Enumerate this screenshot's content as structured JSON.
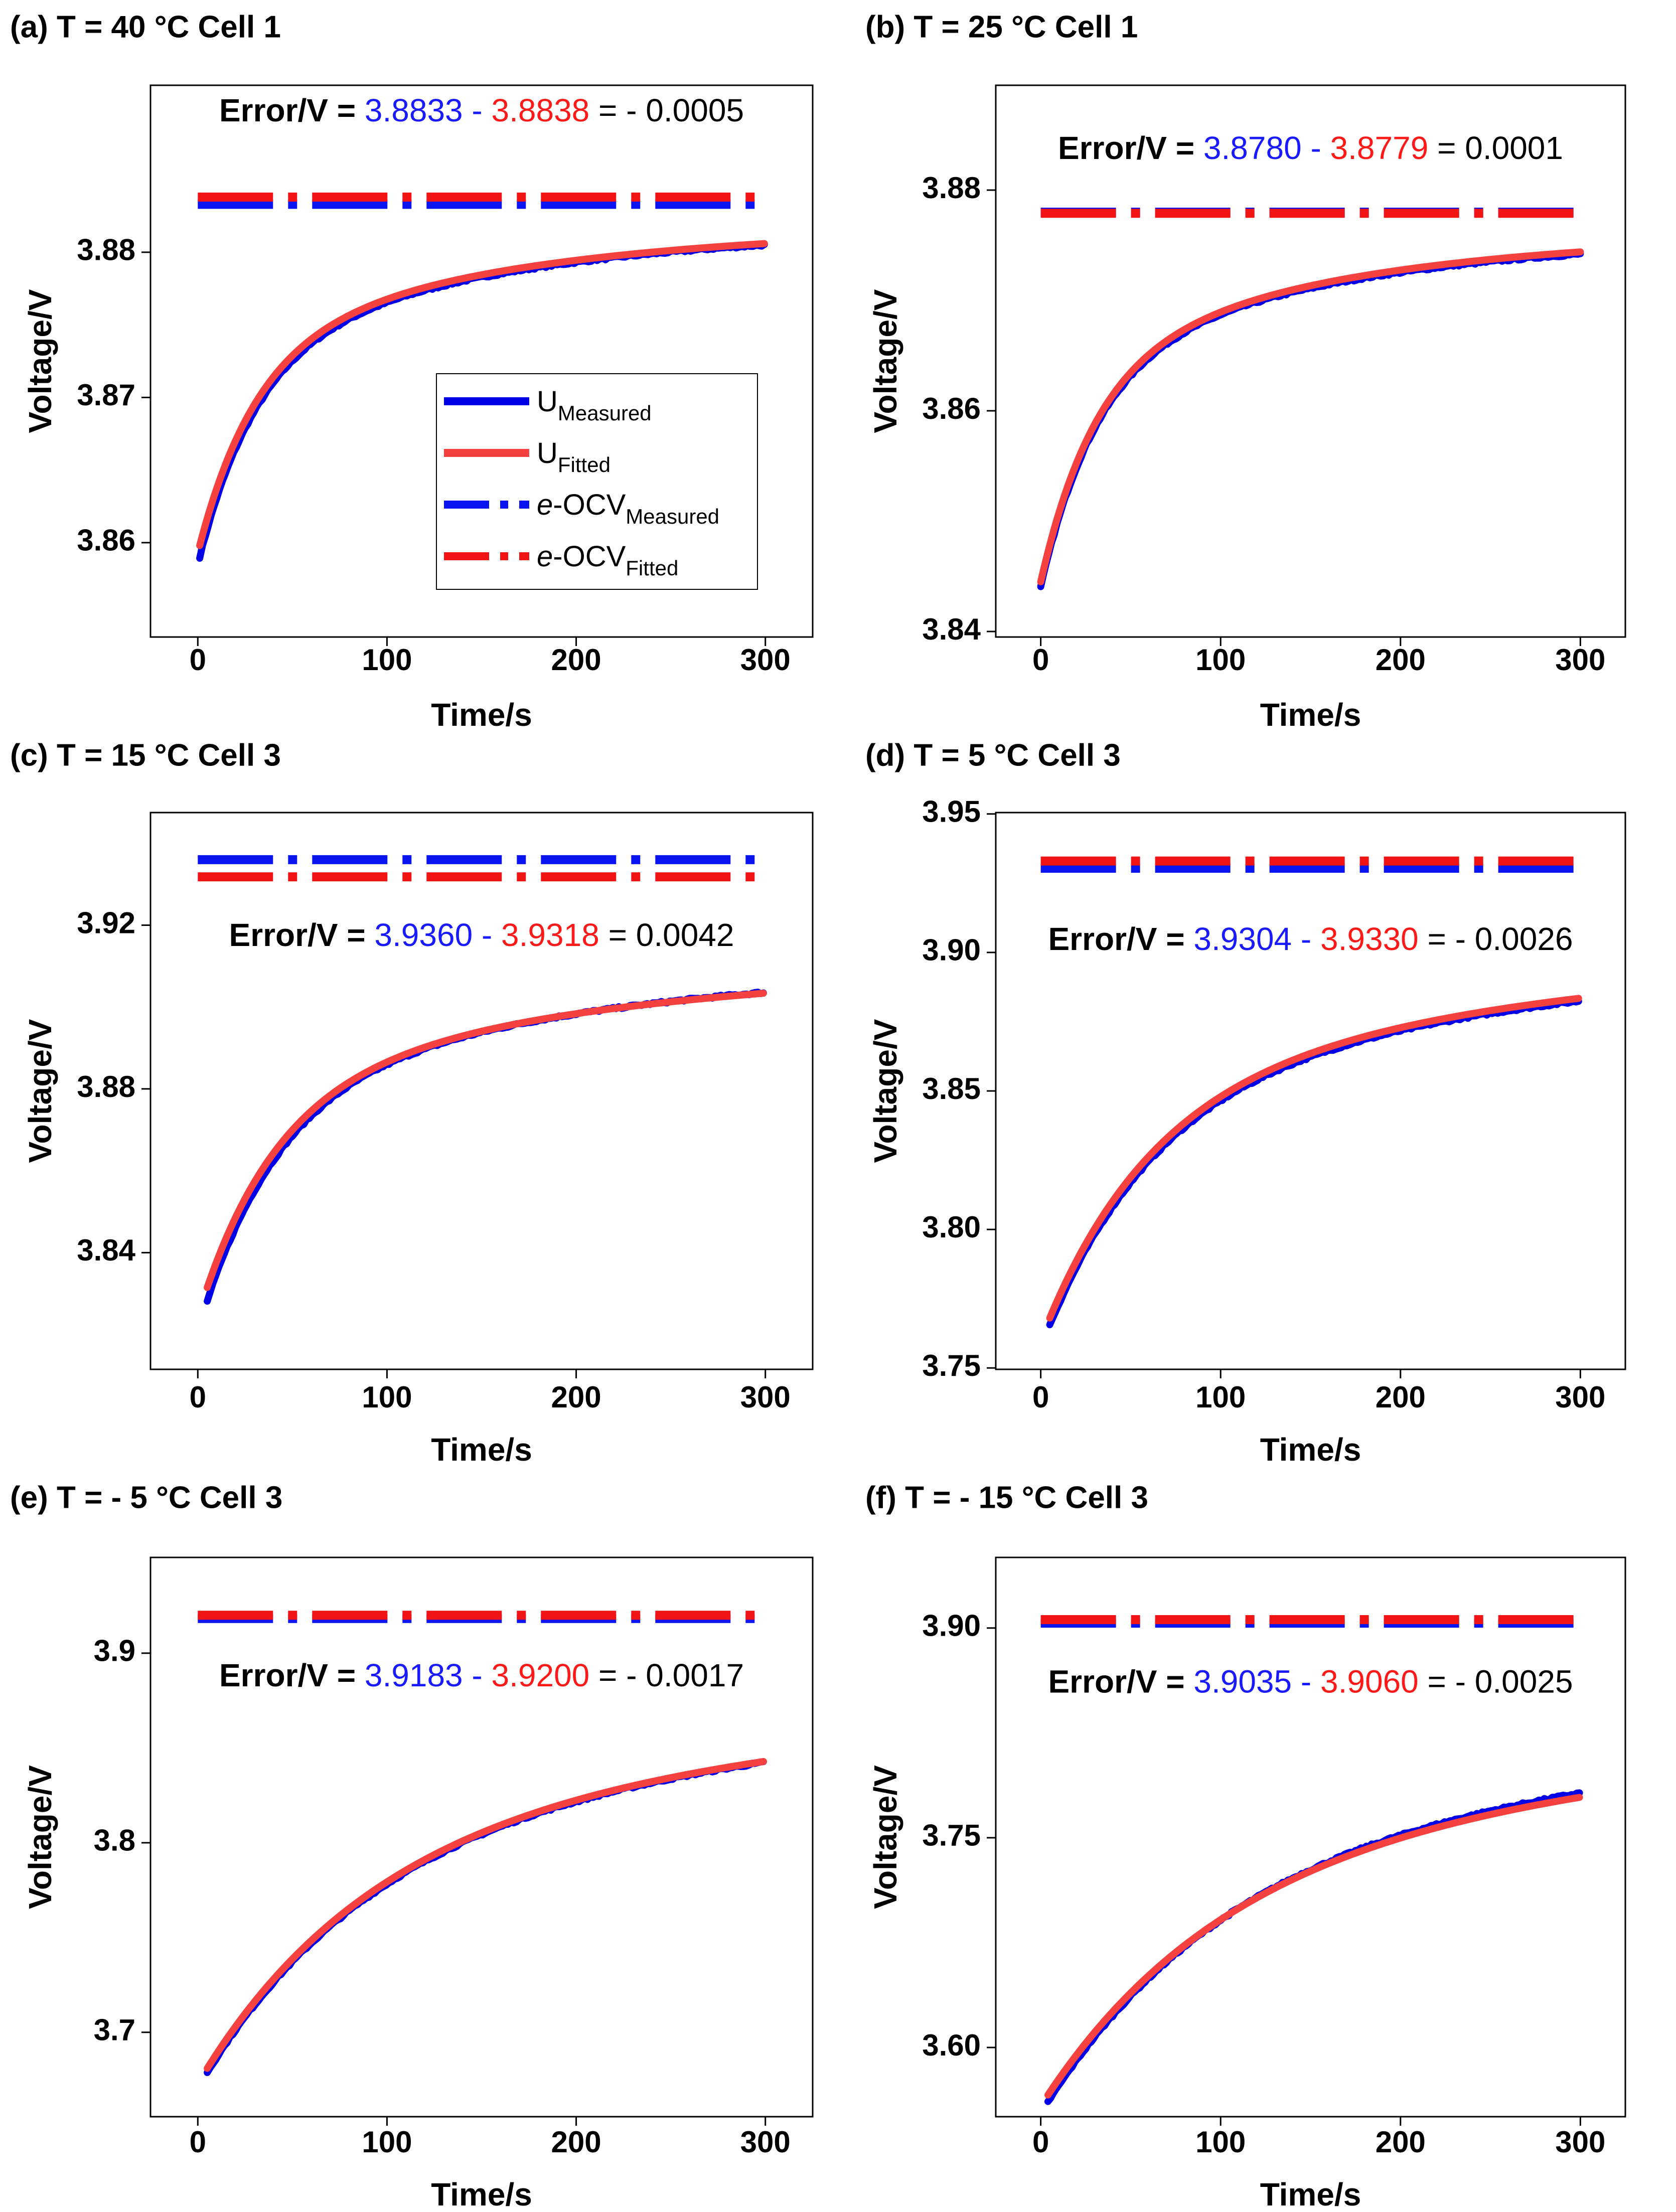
{
  "figure": {
    "colors": {
      "measured": "#0000e6",
      "fitted": "#f5413f",
      "ocv_measured": "#0a14f0",
      "ocv_fitted": "#f01414",
      "error_measured_text": "#1a1aff",
      "error_fitted_text": "#ff1a1a",
      "axis": "#000000"
    },
    "legend": {
      "items": [
        {
          "prefix": "",
          "main": "U",
          "sub": "Measured",
          "style": "solid-measured"
        },
        {
          "prefix": "",
          "main": "U",
          "sub": "Fitted",
          "style": "solid-fitted"
        },
        {
          "prefix": "e",
          "main": "-OCV",
          "sub": "Measured",
          "style": "dashdot-measured"
        },
        {
          "prefix": "e",
          "main": "-OCV",
          "sub": "Fitted",
          "style": "dashdot-fitted"
        }
      ]
    }
  },
  "chart_data": [
    {
      "type": "line",
      "panel": "a",
      "title": "(a) T = 40 °C Cell 1",
      "xlabel": "Time/s",
      "ylabel": "Voltage/V",
      "xlim": [
        -25,
        325
      ],
      "ylim": [
        3.8535,
        3.8915
      ],
      "xticks": [
        0,
        100,
        200,
        300
      ],
      "yticks": [
        3.86,
        3.87,
        3.88
      ],
      "ytick_labels": [
        "3.86",
        "3.87",
        "3.88"
      ],
      "series": [
        {
          "name": "U_Measured",
          "start": 3.859,
          "t_start": 1,
          "end": 3.8805,
          "tau": 30
        },
        {
          "name": "U_Fitted",
          "start": 3.8598,
          "t_start": 1,
          "end": 3.8806,
          "tau": 30
        }
      ],
      "ocv_measured": 3.8833,
      "ocv_fitted": 3.8838,
      "error": {
        "label": "Error/V = ",
        "measured": "3.8833",
        "minus": " - ",
        "fitted": "3.8838",
        "equals": " = - 0.0005"
      },
      "error_y": 3.8896,
      "legend": true
    },
    {
      "type": "line",
      "panel": "b",
      "title": "(b) T = 25 °C Cell 1",
      "xlabel": "Time/s",
      "ylabel": "Voltage/V",
      "xlim": [
        -25,
        325
      ],
      "ylim": [
        3.8395,
        3.8895
      ],
      "xticks": [
        0,
        100,
        200,
        300
      ],
      "yticks": [
        3.84,
        3.86,
        3.88
      ],
      "ytick_labels": [
        "3.84",
        "3.86",
        "3.88"
      ],
      "series": [
        {
          "name": "U_Measured",
          "start": 3.844,
          "t_start": 0,
          "end": 3.8742,
          "tau": 30
        },
        {
          "name": "U_Fitted",
          "start": 3.8445,
          "t_start": 0,
          "end": 3.8744,
          "tau": 30
        }
      ],
      "ocv_measured": 3.878,
      "ocv_fitted": 3.8779,
      "error": {
        "label": "Error/V = ",
        "measured": "3.8780",
        "minus": " - ",
        "fitted": "3.8779",
        "equals": " = 0.0001"
      },
      "error_y": 3.8836,
      "legend": false
    },
    {
      "type": "line",
      "panel": "c",
      "title": "(c) T = 15 °C Cell 3",
      "xlabel": "Time/s",
      "ylabel": "Voltage/V",
      "xlim": [
        -25,
        325
      ],
      "ylim": [
        3.8115,
        3.9475
      ],
      "xticks": [
        0,
        100,
        200,
        300
      ],
      "yticks": [
        3.84,
        3.88,
        3.92
      ],
      "ytick_labels": [
        "3.84",
        "3.88",
        "3.92"
      ],
      "series": [
        {
          "name": "U_Measured",
          "start": 3.8282,
          "t_start": 5,
          "end": 3.9036,
          "tau": 40
        },
        {
          "name": "U_Fitted",
          "start": 3.8315,
          "t_start": 5,
          "end": 3.9034,
          "tau": 40
        }
      ],
      "ocv_measured": 3.936,
      "ocv_fitted": 3.9318,
      "error": {
        "label": "Error/V = ",
        "measured": "3.9360",
        "minus": " - ",
        "fitted": "3.9318",
        "equals": " = 0.0042"
      },
      "error_y": 3.917,
      "legend": false
    },
    {
      "type": "line",
      "panel": "d",
      "title": "(d) T = 5 °C Cell 3",
      "xlabel": "Time/s",
      "ylabel": "Voltage/V",
      "xlim": [
        -25,
        325
      ],
      "ylim": [
        3.7495,
        3.9505
      ],
      "xticks": [
        0,
        100,
        200,
        300
      ],
      "yticks": [
        3.75,
        3.8,
        3.85,
        3.9,
        3.95
      ],
      "ytick_labels": [
        "3.75",
        "3.80",
        "3.85",
        "3.90",
        "3.95"
      ],
      "series": [
        {
          "name": "U_Measured",
          "start": 3.7655,
          "t_start": 5,
          "end": 3.8825,
          "tau": 60
        },
        {
          "name": "U_Fitted",
          "start": 3.768,
          "t_start": 5,
          "end": 3.8835,
          "tau": 60
        }
      ],
      "ocv_measured": 3.9304,
      "ocv_fitted": 3.933,
      "error": {
        "label": "Error/V = ",
        "measured": "3.9304",
        "minus": " - ",
        "fitted": "3.9330",
        "equals": " = - 0.0026"
      },
      "error_y": 3.904,
      "legend": false
    },
    {
      "type": "line",
      "panel": "e",
      "title": "(e) T = - 5 °C Cell 3",
      "xlabel": "Time/s",
      "ylabel": "Voltage/V",
      "xlim": [
        -25,
        325
      ],
      "ylim": [
        3.6555,
        3.9505
      ],
      "xticks": [
        0,
        100,
        200,
        300
      ],
      "yticks": [
        3.7,
        3.8,
        3.9
      ],
      "ytick_labels": [
        "3.7",
        "3.8",
        "3.9"
      ],
      "series": [
        {
          "name": "U_Measured",
          "start": 3.679,
          "t_start": 5,
          "end": 3.8425,
          "tau": 90
        },
        {
          "name": "U_Fitted",
          "start": 3.681,
          "t_start": 5,
          "end": 3.843,
          "tau": 90
        }
      ],
      "ocv_measured": 3.9183,
      "ocv_fitted": 3.92,
      "error": {
        "label": "Error/V = ",
        "measured": "3.9183",
        "minus": " - ",
        "fitted": "3.9200",
        "equals": " = - 0.0017"
      },
      "error_y": 3.887,
      "legend": false
    },
    {
      "type": "line",
      "panel": "f",
      "title": "(f) T = - 15 °C Cell 3",
      "xlabel": "Time/s",
      "ylabel": "Voltage/V",
      "xlim": [
        -25,
        325
      ],
      "ylim": [
        3.5505,
        3.9505
      ],
      "xticks": [
        0,
        100,
        200,
        300
      ],
      "yticks": [
        3.6,
        3.75,
        3.9
      ],
      "ytick_labels": [
        "3.60",
        "3.75",
        "3.90"
      ],
      "series": [
        {
          "name": "U_Measured",
          "start": 3.561,
          "t_start": 4,
          "end": 3.782,
          "tau": 100
        },
        {
          "name": "U_Fitted",
          "start": 3.566,
          "t_start": 4,
          "end": 3.779,
          "tau": 100
        }
      ],
      "ocv_measured": 3.9035,
      "ocv_fitted": 3.906,
      "error": {
        "label": "Error/V = ",
        "measured": "3.9035",
        "minus": " - ",
        "fitted": "3.9060",
        "equals": " = - 0.0025"
      },
      "error_y": 3.86,
      "legend": false
    }
  ]
}
